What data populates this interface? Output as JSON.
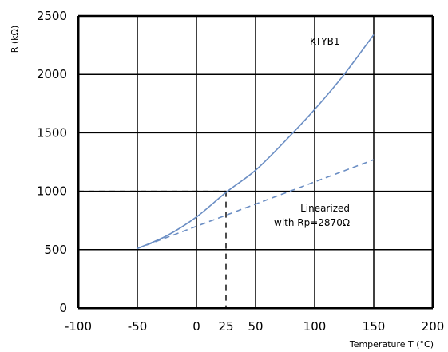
{
  "chart_data": {
    "type": "line",
    "xlabel": "Temperature T (°C)",
    "ylabel": "R (kΩ)",
    "xlim": [
      -100,
      200
    ],
    "ylim": [
      0,
      2500
    ],
    "x_ticks": [
      -100,
      -50,
      0,
      25,
      50,
      100,
      150,
      200
    ],
    "y_ticks": [
      0,
      500,
      1000,
      1500,
      2000,
      2500
    ],
    "grid": true,
    "series": [
      {
        "name": "KTYB1",
        "style": "solid",
        "color": "#6b8ec4",
        "x": [
          -50,
          -25,
          0,
          25,
          50,
          75,
          100,
          125,
          150
        ],
        "y": [
          510,
          620,
          780,
          990,
          1180,
          1430,
          1700,
          2000,
          2340
        ]
      },
      {
        "name": "Linearized with Rp=2870Ω",
        "style": "dashed",
        "color": "#6b8ec4",
        "x": [
          -50,
          150
        ],
        "y": [
          510,
          1270
        ]
      }
    ],
    "reference_lines": {
      "x": 25,
      "y": 1000,
      "style": "dashed",
      "color": "#000000"
    },
    "annotations": {
      "series_label": "KTYB1",
      "linearized_line1": "Linearized",
      "linearized_line2": "with Rp=2870Ω"
    }
  }
}
